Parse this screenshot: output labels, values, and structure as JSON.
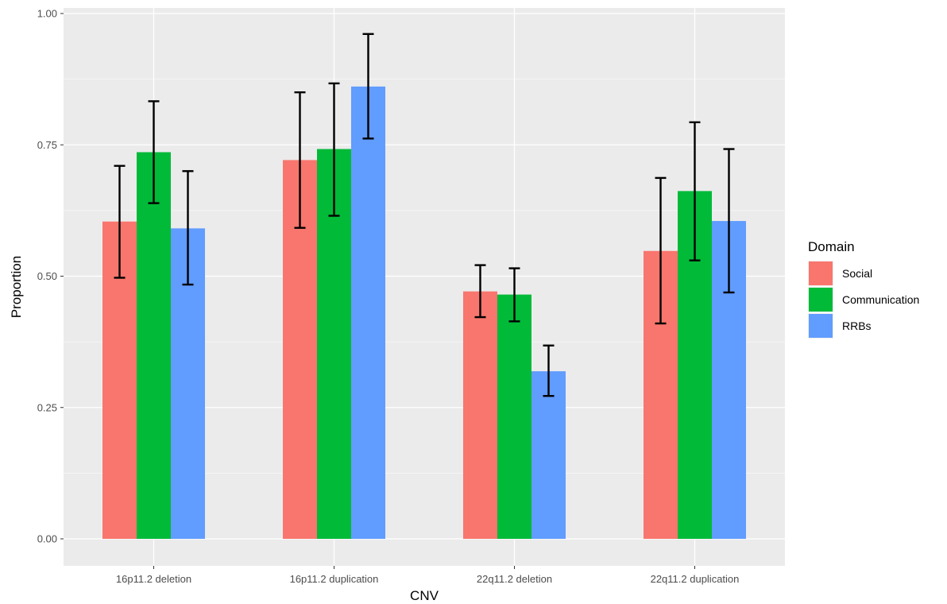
{
  "chart_data": {
    "type": "bar",
    "xlabel": "CNV",
    "ylabel": "Proportion",
    "ylim": [
      -0.07,
      1.01
    ],
    "yticks": [
      0.0,
      0.25,
      0.5,
      0.75,
      1.0
    ],
    "ytick_labels": [
      "0.00",
      "0.25",
      "0.50",
      "0.75",
      "1.00"
    ],
    "grid": true,
    "legend": {
      "title": "Domain",
      "position": "right"
    },
    "categories": [
      "16p11.2 deletion",
      "16p11.2 duplication",
      "22q11.2 deletion",
      "22q11.2 duplication"
    ],
    "series": [
      {
        "name": "Social",
        "color": "#F8766D",
        "values": [
          0.604,
          0.721,
          0.471,
          0.548
        ],
        "err_low": [
          0.497,
          0.592,
          0.422,
          0.41
        ],
        "err_high": [
          0.71,
          0.85,
          0.521,
          0.687
        ]
      },
      {
        "name": "Communication",
        "color": "#00BA38",
        "values": [
          0.736,
          0.742,
          0.465,
          0.662
        ],
        "err_low": [
          0.639,
          0.615,
          0.414,
          0.53
        ],
        "err_high": [
          0.833,
          0.867,
          0.515,
          0.793
        ]
      },
      {
        "name": "RRBs",
        "color": "#619CFF",
        "values": [
          0.591,
          0.861,
          0.319,
          0.605
        ],
        "err_low": [
          0.484,
          0.762,
          0.272,
          0.469
        ],
        "err_high": [
          0.7,
          0.961,
          0.368,
          0.742
        ]
      }
    ]
  }
}
